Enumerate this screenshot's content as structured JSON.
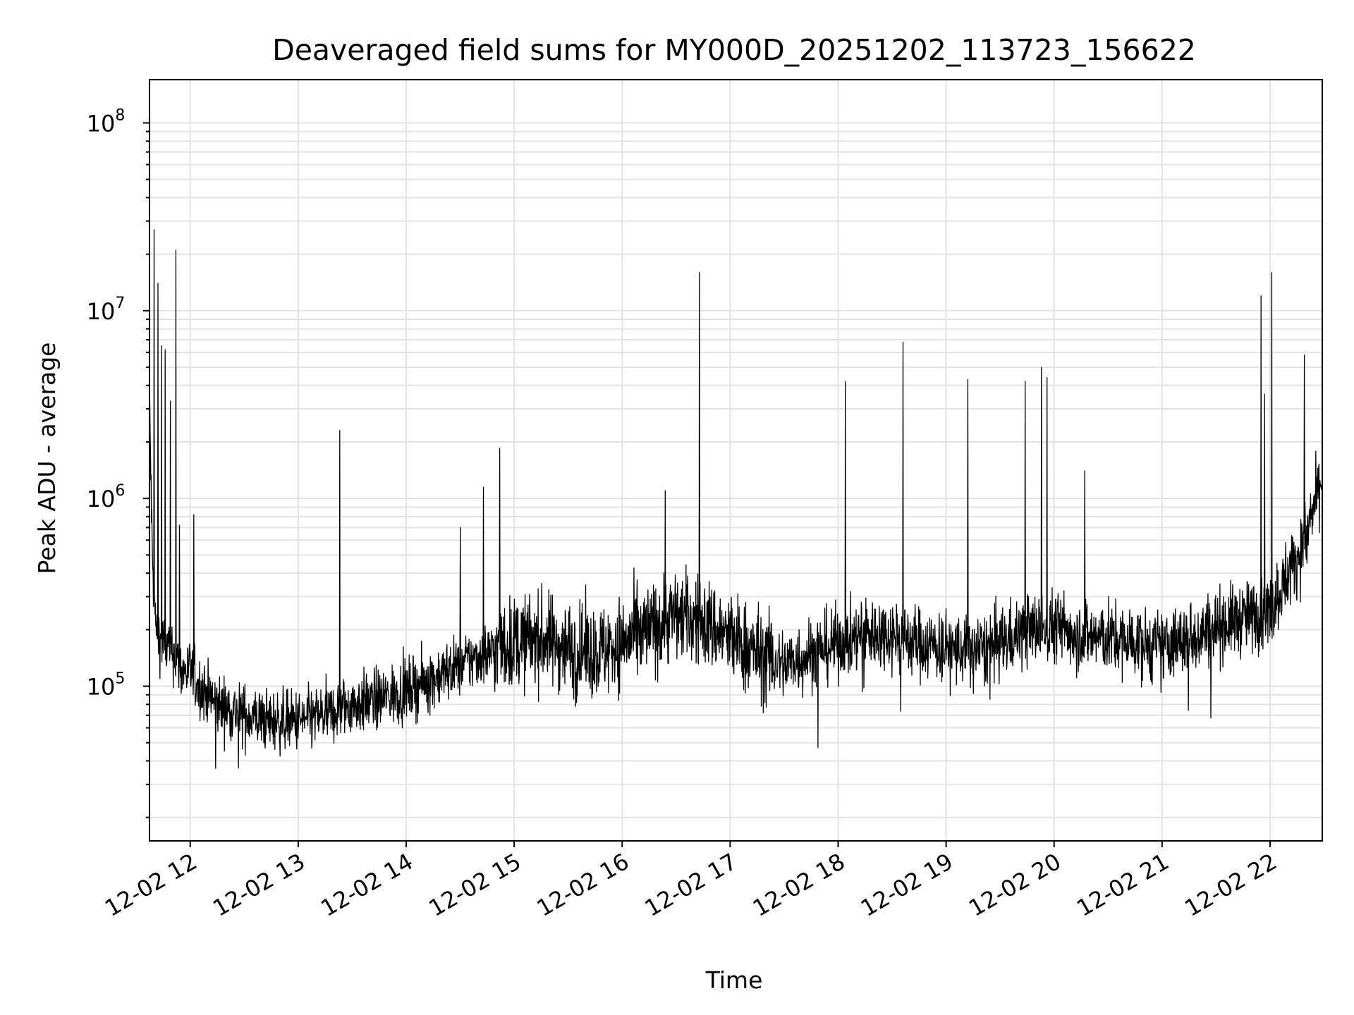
{
  "chart_data": {
    "type": "line",
    "title": "Deaveraged field sums for MY000D_20251202_113723_156622",
    "xlabel": "Time",
    "ylabel": "Peak ADU - average",
    "yscale": "log",
    "xlim": [
      "2025-12-02 11:37:23",
      "2025-12-02 22:29:00"
    ],
    "ylim": [
      15000,
      170000000
    ],
    "grid": true,
    "line_color": "#000000",
    "x_ticks": [
      {
        "value": "2025-12-02 12:00",
        "label": "12-02 12"
      },
      {
        "value": "2025-12-02 13:00",
        "label": "12-02 13"
      },
      {
        "value": "2025-12-02 14:00",
        "label": "12-02 14"
      },
      {
        "value": "2025-12-02 15:00",
        "label": "12-02 15"
      },
      {
        "value": "2025-12-02 16:00",
        "label": "12-02 16"
      },
      {
        "value": "2025-12-02 17:00",
        "label": "12-02 17"
      },
      {
        "value": "2025-12-02 18:00",
        "label": "12-02 18"
      },
      {
        "value": "2025-12-02 19:00",
        "label": "12-02 19"
      },
      {
        "value": "2025-12-02 20:00",
        "label": "12-02 20"
      },
      {
        "value": "2025-12-02 21:00",
        "label": "12-02 21"
      },
      {
        "value": "2025-12-02 22:00",
        "label": "12-02 22"
      }
    ],
    "y_ticks": [
      {
        "value": 100000,
        "base": "10",
        "exp": "5"
      },
      {
        "value": 1000000,
        "base": "10",
        "exp": "6"
      },
      {
        "value": 10000000,
        "base": "10",
        "exp": "7"
      },
      {
        "value": 100000000,
        "base": "10",
        "exp": "8"
      }
    ],
    "series": [
      {
        "x": [
          "2025-12-02 11:37:30",
          "2025-12-02 11:39:00",
          "2025-12-02 11:41:00",
          "2025-12-02 11:43:00",
          "2025-12-02 11:45:00",
          "2025-12-02 11:48:00",
          "2025-12-02 11:51:00",
          "2025-12-02 11:55:00",
          "2025-12-02 12:00:00",
          "2025-12-02 12:05:00",
          "2025-12-02 12:15:00",
          "2025-12-02 12:30:00",
          "2025-12-02 12:45:00",
          "2025-12-02 13:00:00",
          "2025-12-02 13:15:00",
          "2025-12-02 13:30:00",
          "2025-12-02 13:45:00",
          "2025-12-02 14:00:00",
          "2025-12-02 14:15:00",
          "2025-12-02 14:30:00",
          "2025-12-02 14:45:00",
          "2025-12-02 15:00:00",
          "2025-12-02 15:15:00",
          "2025-12-02 15:30:00",
          "2025-12-02 15:45:00",
          "2025-12-02 16:00:00",
          "2025-12-02 16:15:00",
          "2025-12-02 16:30:00",
          "2025-12-02 16:45:00",
          "2025-12-02 17:00:00",
          "2025-12-02 17:15:00",
          "2025-12-02 17:30:00",
          "2025-12-02 17:45:00",
          "2025-12-02 18:00:00",
          "2025-12-02 18:15:00",
          "2025-12-02 18:30:00",
          "2025-12-02 18:45:00",
          "2025-12-02 19:00:00",
          "2025-12-02 19:15:00",
          "2025-12-02 19:30:00",
          "2025-12-02 19:45:00",
          "2025-12-02 20:00:00",
          "2025-12-02 20:15:00",
          "2025-12-02 20:30:00",
          "2025-12-02 20:45:00",
          "2025-12-02 21:00:00",
          "2025-12-02 21:15:00",
          "2025-12-02 21:30:00",
          "2025-12-02 21:45:00",
          "2025-12-02 22:00:00",
          "2025-12-02 22:10:00",
          "2025-12-02 22:20:00",
          "2025-12-02 22:28:30"
        ],
        "y": [
          3000000,
          450000,
          200000,
          180000,
          170000,
          160000,
          150000,
          120000,
          120000,
          100000,
          80000,
          70000,
          65000,
          65000,
          70000,
          80000,
          85000,
          95000,
          110000,
          130000,
          150000,
          170000,
          180000,
          160000,
          150000,
          170000,
          200000,
          240000,
          220000,
          180000,
          150000,
          130000,
          150000,
          170000,
          190000,
          190000,
          170000,
          160000,
          150000,
          170000,
          200000,
          210000,
          190000,
          180000,
          170000,
          160000,
          180000,
          210000,
          230000,
          250000,
          400000,
          600000,
          1300000
        ]
      }
    ],
    "spikes": [
      {
        "x": "2025-12-02 11:40:00",
        "y": 27000000
      },
      {
        "x": "2025-12-02 11:42:00",
        "y": 14000000
      },
      {
        "x": "2025-12-02 11:44:00",
        "y": 6500000
      },
      {
        "x": "2025-12-02 11:46:00",
        "y": 6200000
      },
      {
        "x": "2025-12-02 11:49:00",
        "y": 3300000
      },
      {
        "x": "2025-12-02 11:52:00",
        "y": 21000000
      },
      {
        "x": "2025-12-02 11:54:00",
        "y": 720000
      },
      {
        "x": "2025-12-02 12:02:00",
        "y": 820000
      },
      {
        "x": "2025-12-02 13:23:00",
        "y": 2300000
      },
      {
        "x": "2025-12-02 14:30:00",
        "y": 700000
      },
      {
        "x": "2025-12-02 14:43:00",
        "y": 1150000
      },
      {
        "x": "2025-12-02 14:52:00",
        "y": 1850000
      },
      {
        "x": "2025-12-02 16:24:00",
        "y": 1100000
      },
      {
        "x": "2025-12-02 16:43:00",
        "y": 16000000
      },
      {
        "x": "2025-12-02 18:04:00",
        "y": 4200000
      },
      {
        "x": "2025-12-02 18:36:00",
        "y": 6800000
      },
      {
        "x": "2025-12-02 19:12:00",
        "y": 4300000
      },
      {
        "x": "2025-12-02 19:44:00",
        "y": 4200000
      },
      {
        "x": "2025-12-02 19:53:00",
        "y": 5000000
      },
      {
        "x": "2025-12-02 19:56:00",
        "y": 4400000
      },
      {
        "x": "2025-12-02 20:17:00",
        "y": 1400000
      },
      {
        "x": "2025-12-02 21:55:00",
        "y": 12000000
      },
      {
        "x": "2025-12-02 21:57:00",
        "y": 3600000
      },
      {
        "x": "2025-12-02 22:01:00",
        "y": 16000000
      },
      {
        "x": "2025-12-02 22:19:00",
        "y": 5800000
      }
    ]
  }
}
